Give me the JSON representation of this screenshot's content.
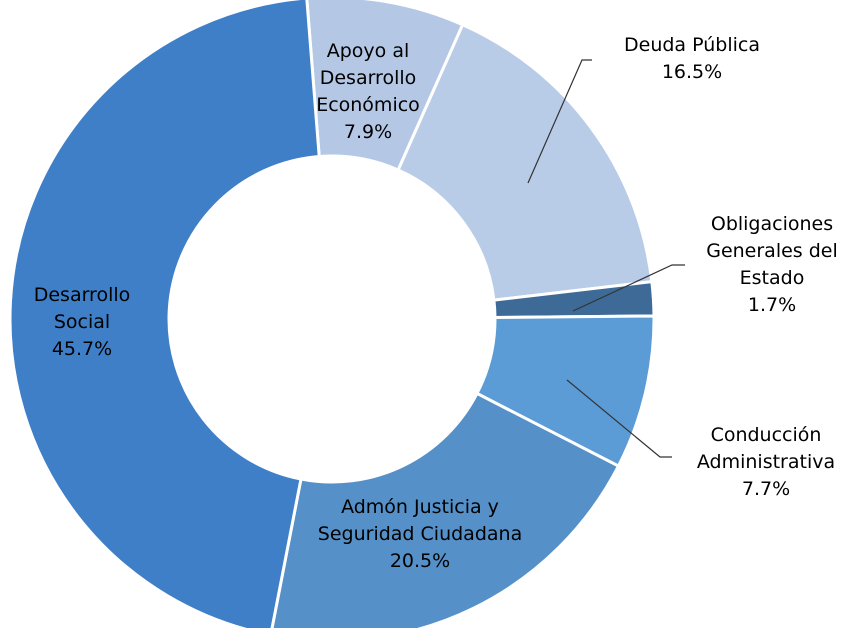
{
  "chart_data": {
    "type": "donut",
    "categories": [
      "Apoyo al Desarrollo Económico",
      "Deuda Pública",
      "Obligaciones Generales del Estado",
      "Conducción Administrativa",
      "Admón Justicia y Seguridad Ciudadana",
      "Desarrollo Social"
    ],
    "values": [
      7.9,
      16.5,
      1.7,
      7.7,
      20.5,
      45.7
    ],
    "value_labels": [
      "7.9%",
      "16.5%",
      "1.7%",
      "7.7%",
      "20.5%",
      "45.7%"
    ],
    "colors": [
      "#b4c8e6",
      "#b8cce8",
      "#3e6a98",
      "#5b9bd6",
      "#5590c8",
      "#3f7fc8"
    ]
  }
}
